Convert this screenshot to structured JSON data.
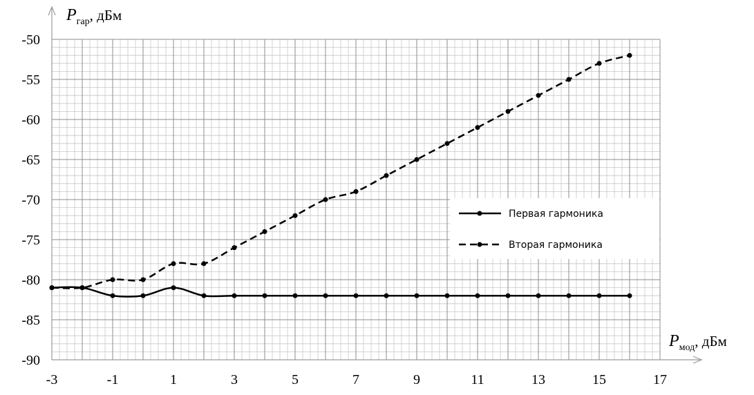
{
  "chart_data": {
    "type": "line",
    "xlabel_symbol": "P",
    "xlabel_sub": "мод",
    "xlabel_unit": ", дБм",
    "ylabel_symbol": "P",
    "ylabel_sub": "гар",
    "ylabel_unit": ", дБм",
    "xlim": [
      -3,
      17
    ],
    "ylim": [
      -90,
      -50
    ],
    "x_ticks": [
      "-3",
      "-1",
      "1",
      "3",
      "5",
      "7",
      "9",
      "11",
      "13",
      "15",
      "17"
    ],
    "y_ticks": [
      "-50",
      "-55",
      "-60",
      "-65",
      "-70",
      "-75",
      "-80",
      "-85",
      "-90"
    ],
    "grid": true,
    "legend_position": "right",
    "series": [
      {
        "name": "Первая гармоника",
        "style": "solid",
        "color": "#000000",
        "x": [
          -3,
          -2,
          -1,
          0,
          1,
          2,
          3,
          4,
          5,
          6,
          7,
          8,
          9,
          10,
          11,
          12,
          13,
          14,
          15,
          16
        ],
        "y": [
          -81,
          -81,
          -82,
          -82,
          -81,
          -82,
          -82,
          -82,
          -82,
          -82,
          -82,
          -82,
          -82,
          -82,
          -82,
          -82,
          -82,
          -82,
          -82,
          -82
        ]
      },
      {
        "name": "Вторая гармоника",
        "style": "dashed",
        "color": "#000000",
        "x": [
          -3,
          -2,
          -1,
          0,
          1,
          2,
          3,
          4,
          5,
          6,
          7,
          8,
          9,
          10,
          11,
          12,
          13,
          14,
          15,
          16
        ],
        "y": [
          -81,
          -81,
          -80,
          -80,
          -78,
          -78,
          -76,
          -74,
          -72,
          -70,
          -69,
          -67,
          -65,
          -63,
          -61,
          -59,
          -57,
          -55,
          -53,
          -52
        ]
      }
    ]
  }
}
